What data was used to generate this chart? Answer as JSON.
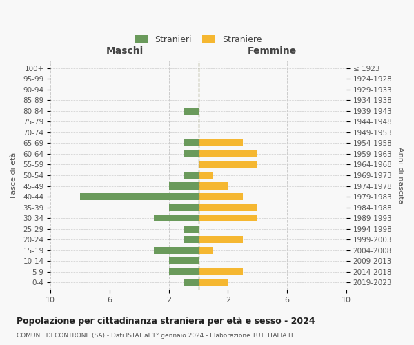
{
  "age_groups": [
    "0-4",
    "5-9",
    "10-14",
    "15-19",
    "20-24",
    "25-29",
    "30-34",
    "35-39",
    "40-44",
    "45-49",
    "50-54",
    "55-59",
    "60-64",
    "65-69",
    "70-74",
    "75-79",
    "80-84",
    "85-89",
    "90-94",
    "95-99",
    "100+"
  ],
  "birth_years": [
    "2019-2023",
    "2014-2018",
    "2009-2013",
    "2004-2008",
    "1999-2003",
    "1994-1998",
    "1989-1993",
    "1984-1988",
    "1979-1983",
    "1974-1978",
    "1969-1973",
    "1964-1968",
    "1959-1963",
    "1954-1958",
    "1949-1953",
    "1944-1948",
    "1939-1943",
    "1934-1938",
    "1929-1933",
    "1924-1928",
    "≤ 1923"
  ],
  "maschi": [
    1,
    2,
    2,
    3,
    1,
    1,
    3,
    2,
    8,
    2,
    1,
    0,
    1,
    1,
    0,
    0,
    1,
    0,
    0,
    0,
    0
  ],
  "femmine": [
    2,
    3,
    0,
    1,
    3,
    0,
    4,
    4,
    3,
    2,
    1,
    4,
    4,
    3,
    0,
    0,
    0,
    0,
    0,
    0,
    0
  ],
  "maschi_color": "#6a9a5b",
  "femmine_color": "#f5b731",
  "xlim": 10,
  "title": "Popolazione per cittadinanza straniera per età e sesso - 2024",
  "subtitle": "COMUNE DI CONTRONE (SA) - Dati ISTAT al 1° gennaio 2024 - Elaborazione TUTTITALIA.IT",
  "left_label": "Maschi",
  "right_label": "Femmine",
  "ylabel": "Fasce di età",
  "ylabel_right": "Anni di nascita",
  "legend_stranieri": "Stranieri",
  "legend_straniere": "Straniere",
  "bg_color": "#f8f8f8",
  "grid_color": "#cccccc",
  "vline_color": "#8b8b5a",
  "bar_height": 0.65
}
